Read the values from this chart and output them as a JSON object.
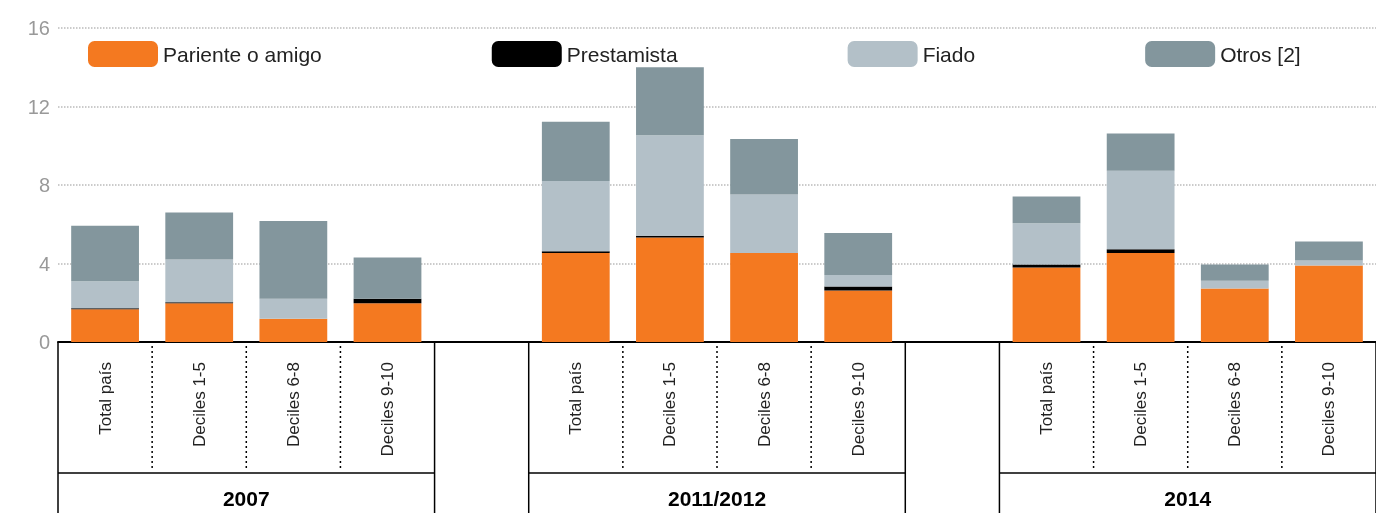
{
  "chart_data": {
    "type": "bar",
    "stacked": true,
    "categories": [
      "Total país",
      "Deciles 1-5",
      "Deciles 6-8",
      "Deciles 9-10",
      null,
      "Total país",
      "Deciles 1-5",
      "Deciles 6-8",
      "Deciles 9-10",
      null,
      "Total país",
      "Deciles 1-5",
      "Deciles 6-8",
      "Deciles 9-10"
    ],
    "series": [
      {
        "name": "Pariente o amigo",
        "color": "#f47920",
        "values": [
          1.67,
          1.97,
          1.19,
          1.97,
          null,
          4.54,
          5.32,
          4.54,
          2.63,
          null,
          3.8,
          4.54,
          2.73,
          3.9
        ]
      },
      {
        "name": "Prestamista",
        "color": "#000000",
        "values": [
          0.05,
          0.05,
          0,
          0.24,
          null,
          0.09,
          0.09,
          0,
          0.2,
          null,
          0.15,
          0.19,
          0,
          0
        ]
      },
      {
        "name": "Fiado",
        "color": "#b3c0c8",
        "values": [
          1.37,
          2.19,
          1.02,
          0,
          null,
          3.57,
          5.13,
          2.97,
          0.58,
          null,
          2.1,
          4.0,
          0.39,
          0.25
        ]
      },
      {
        "name": "Otros [2]",
        "color": "#83969d",
        "values": [
          2.83,
          2.39,
          3.95,
          2.1,
          null,
          3.02,
          3.46,
          2.83,
          2.15,
          null,
          1.36,
          1.9,
          0.83,
          0.97
        ]
      }
    ],
    "ylim": [
      0,
      16
    ],
    "yticks": [
      0,
      4,
      8,
      12,
      16
    ],
    "grid": "y",
    "legend": "top",
    "annotations": [
      "2007",
      "2011/2012",
      "2014"
    ]
  }
}
